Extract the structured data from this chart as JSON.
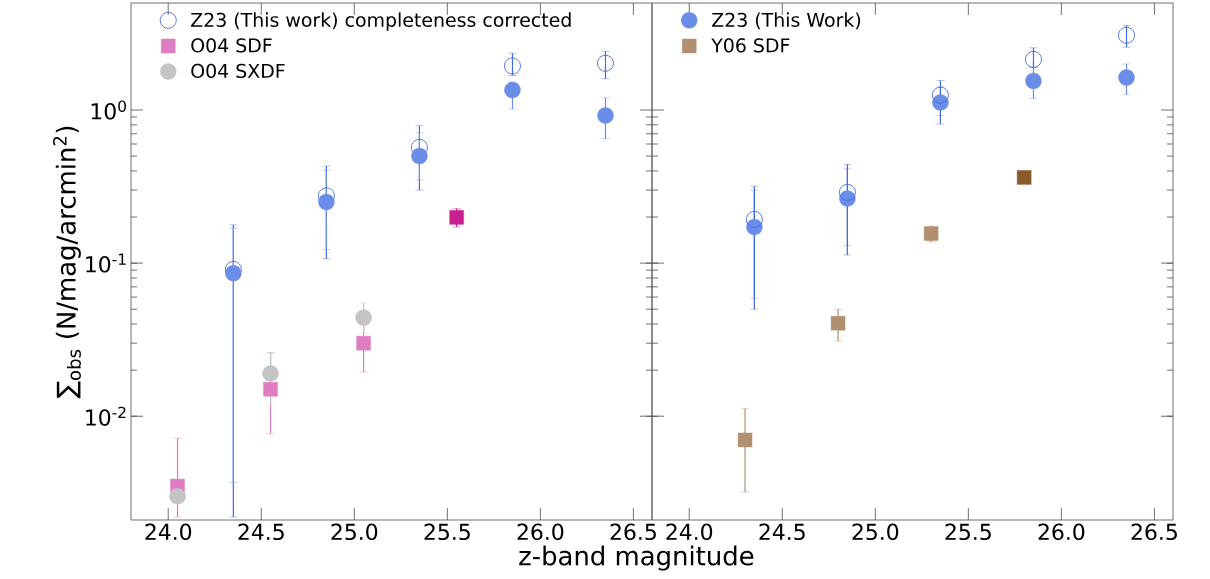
{
  "chart_data": [
    {
      "type": "scatter",
      "xlabel": "z-band magnitude",
      "ylabel": "∑$_{obs}$ (N/mag/arcmin$^{2}$)",
      "xlim": [
        23.8,
        26.6
      ],
      "ylim": [
        0.0021,
        5
      ],
      "log": "y",
      "legend": "top left",
      "xticks": [
        {
          "value": 24.0,
          "label": "24.0"
        },
        {
          "value": 24.5,
          "label": "24.5"
        },
        {
          "value": 25.0,
          "label": "25.0"
        },
        {
          "value": 25.5,
          "label": "25.5"
        },
        {
          "value": 26.0,
          "label": "26.0"
        },
        {
          "value": 26.5,
          "label": "26.5"
        }
      ],
      "yticks": [
        {
          "value": 0.01,
          "label": "10$^{-2}$"
        },
        {
          "value": 0.1,
          "label": "10$^{-1}$"
        },
        {
          "value": 1,
          "label": "10$^{0}$"
        }
      ],
      "series": [
        {
          "name": "Z23 (This work) completeness corrected",
          "color": "#4169e1",
          "marker": "open circle",
          "x": [
            24.35,
            24.85,
            25.35,
            25.85,
            26.35
          ],
          "values": [
            0.091,
            0.275,
            0.57,
            1.94,
            2.02
          ],
          "errors": [
            [
              0.0022,
              0.178
            ],
            [
              0.107,
              0.43
            ],
            [
              0.3,
              0.79
            ],
            [
              1.68,
              2.35
            ],
            [
              1.6,
              2.42
            ]
          ]
        },
        {
          "color": "#6a8ee8",
          "marker": "circle",
          "x": [
            24.35,
            24.85,
            25.35,
            25.85,
            26.35
          ],
          "values": [
            0.086,
            0.251,
            0.5,
            1.35,
            0.92
          ],
          "errors": [
            [
              0.0037,
              0.169
            ],
            [
              0.123,
              0.404
            ],
            [
              0.35,
              0.71
            ],
            [
              1.015,
              1.52
            ],
            [
              0.65,
              1.2
            ]
          ]
        },
        {
          "name": "O04 SDF",
          "color": "#e07cc0",
          "colors": [
            "#e07cc0",
            "#e07cc0",
            "#e07cc0",
            "#c8208e"
          ],
          "marker": "square",
          "x": [
            24.05,
            24.55,
            25.05,
            25.55
          ],
          "values": [
            0.0035,
            0.015,
            0.03,
            0.199
          ],
          "errors": [
            [
              0.0022,
              0.0072
            ],
            [
              0.0077,
              0.026
            ],
            [
              0.0194,
              0.04
            ],
            [
              0.172,
              0.227
            ]
          ]
        },
        {
          "name": "O04 SXDF",
          "color": "#c4c4c4",
          "marker": "circle",
          "x": [
            24.05,
            24.55,
            25.05
          ],
          "values": [
            0.003,
            0.019,
            0.044
          ],
          "errors": [
            null,
            [
              0.0117,
              0.026
            ],
            [
              0.035,
              0.055
            ]
          ]
        }
      ]
    },
    {
      "type": "scatter",
      "xlim": [
        23.8,
        26.6
      ],
      "ylim": [
        0.0021,
        5
      ],
      "log": "y",
      "legend": "top left",
      "tick_labels": "x",
      "xticks": [
        {
          "value": 24.0,
          "label": "24.0"
        },
        {
          "value": 24.5,
          "label": "24.5"
        },
        {
          "value": 25.0,
          "label": "25.0"
        },
        {
          "value": 25.5,
          "label": "25.5"
        },
        {
          "value": 26.0,
          "label": "26.0"
        },
        {
          "value": 26.5,
          "label": "26.5"
        }
      ],
      "yticks": [
        {
          "value": 0.01,
          "label": null
        },
        {
          "value": 0.1,
          "label": null
        },
        {
          "value": 1,
          "label": null
        }
      ],
      "series": [
        {
          "name": "Z23 (This Work)",
          "color": "#6a8ee8",
          "marker": "circle",
          "x": [
            24.35,
            24.85,
            25.35,
            25.85,
            26.35
          ],
          "values": [
            0.172,
            0.264,
            1.12,
            1.55,
            1.63
          ],
          "errors": [
            [
              0.059,
              0.3
            ],
            [
              0.13,
              0.414
            ],
            [
              0.92,
              1.42
            ],
            [
              1.19,
              1.9
            ],
            [
              1.26,
              2.0
            ]
          ]
        },
        {
          "color": "#4169e1",
          "marker": "open circle",
          "x": [
            24.35,
            24.85,
            25.35,
            25.85,
            26.35
          ],
          "values": [
            0.193,
            0.29,
            1.25,
            2.14,
            3.08
          ],
          "errors": [
            [
              0.05,
              0.318
            ],
            [
              0.113,
              0.44
            ],
            [
              0.81,
              1.56
            ],
            [
              1.9,
              2.55
            ],
            [
              2.57,
              3.57
            ]
          ]
        },
        {
          "name": "Y06 SDF",
          "color": "#b09070",
          "colors": [
            "#b09070",
            "#b09070",
            "#b09070",
            "#8b5a2b"
          ],
          "marker": "square",
          "x": [
            24.3,
            24.8,
            25.3,
            25.8
          ],
          "values": [
            0.007,
            0.0405,
            0.156,
            0.363
          ],
          "errors": [
            [
              0.0032,
              0.0112
            ],
            [
              0.031,
              0.05
            ],
            [
              0.138,
              0.175
            ],
            [
              0.331,
              0.395
            ]
          ]
        }
      ]
    }
  ]
}
